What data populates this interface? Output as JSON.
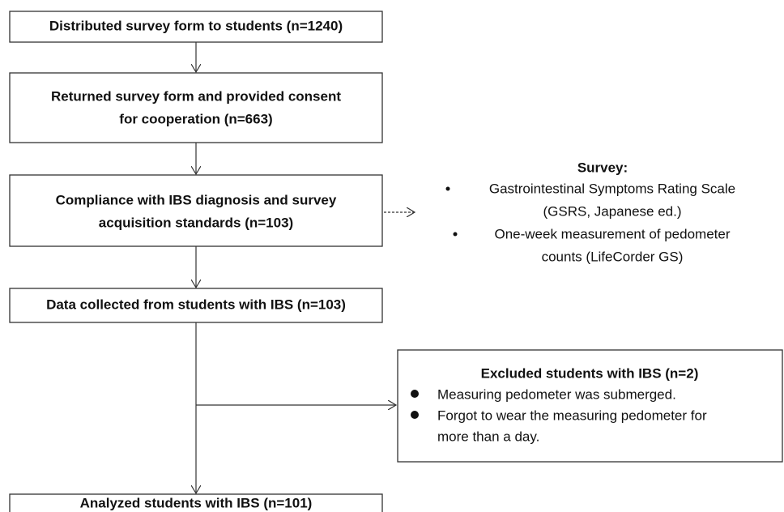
{
  "nodes": [
    {
      "lines": [
        "Distributed survey form to students (n=1240)"
      ]
    },
    {
      "lines": [
        "Returned survey form and provided consent",
        "for cooperation (n=663)"
      ]
    },
    {
      "lines": [
        "Compliance with IBS diagnosis and survey",
        "acquisition standards (n=103)"
      ]
    },
    {
      "lines": [
        "Data collected from students with IBS (n=103)"
      ]
    },
    {
      "lines": [
        "Analyzed students with IBS (n=101)"
      ]
    }
  ],
  "survey": {
    "title": "Survey:",
    "items": [
      {
        "lines": [
          "Gastrointestinal Symptoms Rating Scale",
          "(GSRS, Japanese ed.)"
        ]
      },
      {
        "lines": [
          "One-week measurement of pedometer",
          "counts (LifeCorder GS)"
        ]
      }
    ]
  },
  "excluded": {
    "title": "Excluded students with IBS (n=2)",
    "items": [
      {
        "lines": [
          "Measuring pedometer was submerged."
        ]
      },
      {
        "lines": [
          "Forgot to wear the measuring pedometer for",
          "more than a day."
        ]
      }
    ]
  }
}
